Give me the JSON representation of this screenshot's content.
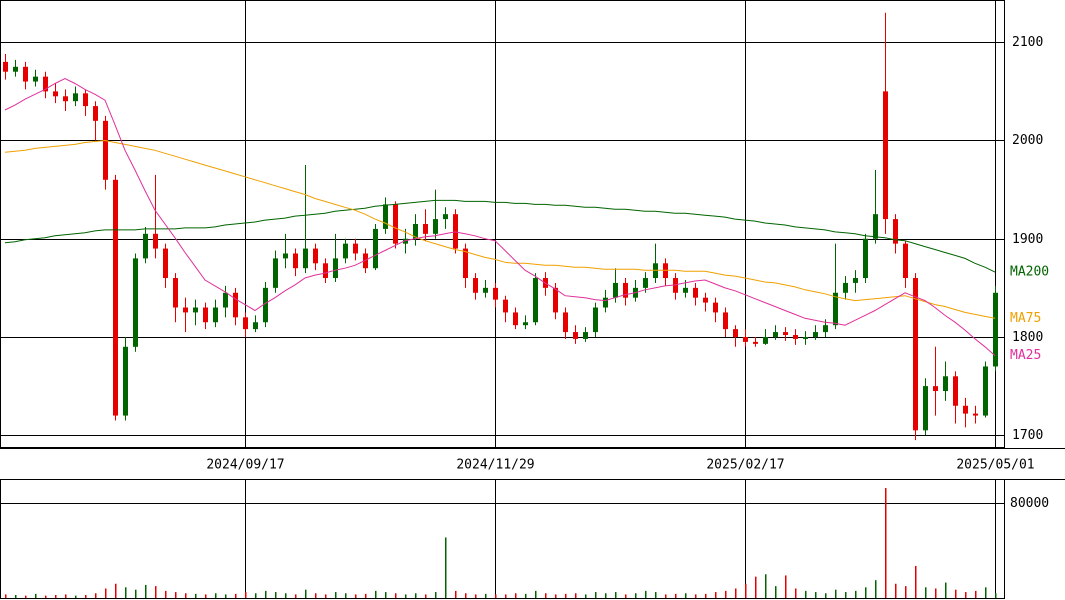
{
  "chart_data": {
    "type": "candlestick",
    "categories": [
      null,
      null,
      null,
      null,
      null,
      null,
      null,
      null,
      null,
      null,
      null,
      null,
      null,
      null,
      null,
      null,
      null,
      null,
      null,
      null,
      null,
      null,
      null,
      null,
      "2024/09/17",
      null,
      null,
      null,
      null,
      null,
      null,
      null,
      null,
      null,
      null,
      null,
      null,
      null,
      null,
      null,
      null,
      null,
      null,
      null,
      null,
      null,
      null,
      null,
      null,
      "2024/11/29",
      null,
      null,
      null,
      null,
      null,
      null,
      null,
      null,
      null,
      null,
      null,
      null,
      null,
      null,
      null,
      null,
      null,
      null,
      null,
      null,
      null,
      null,
      null,
      null,
      "2025/02/17",
      null,
      null,
      null,
      null,
      null,
      null,
      null,
      null,
      null,
      null,
      null,
      null,
      null,
      null,
      null,
      null,
      null,
      null,
      null,
      null,
      null,
      null,
      null,
      null,
      "2025/05/01"
    ],
    "open": [
      2080,
      2070,
      2075,
      2060,
      2065,
      2050,
      2045,
      2040,
      2048,
      2035,
      2020,
      1960,
      1720,
      1790,
      1880,
      1905,
      1890,
      1860,
      1830,
      1825,
      1830,
      1815,
      1830,
      1845,
      1820,
      1808,
      1815,
      1850,
      1880,
      1885,
      1870,
      1890,
      1875,
      1860,
      1880,
      1895,
      1885,
      1870,
      1910,
      1935,
      1895,
      1900,
      1915,
      1905,
      1920,
      1925,
      1890,
      1860,
      1845,
      1850,
      1838,
      1825,
      1812,
      1815,
      1860,
      1850,
      1825,
      1805,
      1798,
      1805,
      1830,
      1840,
      1855,
      1840,
      1850,
      1860,
      1875,
      1860,
      1845,
      1850,
      1840,
      1835,
      1825,
      1808,
      1800,
      1795,
      1793,
      1800,
      1805,
      1802,
      1798,
      1800,
      1805,
      1812,
      1845,
      1855,
      1860,
      1900,
      2050,
      1920,
      1895,
      1860,
      1705,
      1750,
      1745,
      1760,
      1730,
      1722,
      1720,
      1770
    ],
    "high": [
      2088,
      2082,
      2080,
      2072,
      2070,
      2058,
      2052,
      2055,
      2052,
      2040,
      2025,
      1965,
      1800,
      1885,
      1912,
      1965,
      1895,
      1865,
      1840,
      1838,
      1835,
      1838,
      1852,
      1850,
      1825,
      1822,
      1856,
      1888,
      1905,
      1890,
      1975,
      1895,
      1880,
      1905,
      1900,
      1900,
      1890,
      1915,
      1942,
      1938,
      1910,
      1925,
      1930,
      1950,
      1932,
      1930,
      1895,
      1865,
      1858,
      1855,
      1842,
      1830,
      1822,
      1865,
      1866,
      1855,
      1830,
      1812,
      1810,
      1835,
      1848,
      1870,
      1860,
      1858,
      1866,
      1895,
      1880,
      1865,
      1858,
      1855,
      1845,
      1840,
      1830,
      1812,
      1808,
      1800,
      1808,
      1812,
      1810,
      1808,
      1806,
      1812,
      1818,
      1895,
      1862,
      1868,
      1905,
      1970,
      2130,
      1925,
      1898,
      1865,
      1758,
      1790,
      1775,
      1765,
      1738,
      1730,
      1775,
      1852
    ],
    "low": [
      2062,
      2065,
      2052,
      2055,
      2043,
      2038,
      2030,
      2035,
      2025,
      2000,
      1950,
      1715,
      1715,
      1785,
      1875,
      1880,
      1850,
      1815,
      1805,
      1812,
      1808,
      1810,
      1820,
      1812,
      1800,
      1805,
      1810,
      1845,
      1870,
      1862,
      1865,
      1868,
      1855,
      1856,
      1875,
      1878,
      1865,
      1868,
      1905,
      1890,
      1885,
      1893,
      1898,
      1900,
      1910,
      1885,
      1850,
      1838,
      1840,
      1830,
      1815,
      1808,
      1808,
      1812,
      1842,
      1818,
      1798,
      1793,
      1795,
      1800,
      1825,
      1835,
      1832,
      1836,
      1845,
      1855,
      1852,
      1838,
      1840,
      1832,
      1826,
      1815,
      1800,
      1790,
      1790,
      1790,
      1792,
      1797,
      1796,
      1792,
      1792,
      1797,
      1800,
      1808,
      1838,
      1845,
      1855,
      1895,
      1905,
      1885,
      1850,
      1695,
      1700,
      1720,
      1735,
      1712,
      1708,
      1712,
      1718,
      1765
    ],
    "close": [
      2070,
      2075,
      2060,
      2065,
      2050,
      2045,
      2040,
      2048,
      2035,
      2020,
      1960,
      1720,
      1790,
      1880,
      1905,
      1890,
      1860,
      1830,
      1825,
      1830,
      1815,
      1830,
      1845,
      1820,
      1808,
      1815,
      1850,
      1880,
      1885,
      1870,
      1890,
      1875,
      1860,
      1880,
      1895,
      1885,
      1870,
      1910,
      1935,
      1895,
      1900,
      1915,
      1905,
      1920,
      1925,
      1890,
      1860,
      1845,
      1850,
      1838,
      1825,
      1812,
      1815,
      1860,
      1850,
      1825,
      1805,
      1798,
      1805,
      1830,
      1840,
      1855,
      1840,
      1850,
      1860,
      1875,
      1860,
      1845,
      1850,
      1840,
      1835,
      1825,
      1808,
      1800,
      1795,
      1793,
      1800,
      1805,
      1802,
      1798,
      1800,
      1805,
      1812,
      1845,
      1855,
      1860,
      1900,
      1925,
      1920,
      1895,
      1860,
      1705,
      1750,
      1745,
      1760,
      1730,
      1722,
      1720,
      1770,
      1845
    ],
    "up_color": "#006400",
    "down_color": "#e60000",
    "ylim": [
      1687,
      2143
    ],
    "yticks": [
      1700,
      1800,
      1900,
      2000,
      2100
    ],
    "grid": true,
    "series": [
      {
        "name": "MA200",
        "color": "#006400",
        "values": [
          1896,
          1897,
          1899,
          1900,
          1901,
          1903,
          1904,
          1905,
          1906,
          1908,
          1909,
          1909,
          1909,
          1909,
          1910,
          1910,
          1910,
          1910,
          1911,
          1911,
          1911,
          1912,
          1914,
          1915,
          1916,
          1917,
          1919,
          1920,
          1921,
          1923,
          1924,
          1925,
          1926,
          1928,
          1929,
          1930,
          1931,
          1933,
          1934,
          1935,
          1936,
          1937,
          1938,
          1939,
          1939,
          1939,
          1938,
          1938,
          1938,
          1937,
          1937,
          1936,
          1936,
          1935,
          1935,
          1934,
          1934,
          1933,
          1932,
          1932,
          1931,
          1930,
          1930,
          1929,
          1928,
          1928,
          1927,
          1926,
          1926,
          1925,
          1924,
          1923,
          1922,
          1920,
          1919,
          1918,
          1916,
          1915,
          1914,
          1912,
          1911,
          1910,
          1909,
          1907,
          1906,
          1905,
          1903,
          1902,
          1901,
          1899,
          1898,
          1895,
          1892,
          1889,
          1886,
          1883,
          1880,
          1875,
          1871,
          1866
        ]
      },
      {
        "name": "MA75",
        "color": "#f0a000",
        "values": [
          1988,
          1989,
          1990,
          1992,
          1993,
          1994,
          1995,
          1996,
          1998,
          1999,
          2000,
          1998,
          1996,
          1994,
          1992,
          1990,
          1987,
          1984,
          1981,
          1978,
          1975,
          1972,
          1969,
          1966,
          1963,
          1960,
          1957,
          1954,
          1951,
          1948,
          1945,
          1941,
          1938,
          1935,
          1932,
          1929,
          1925,
          1920,
          1916,
          1911,
          1907,
          1902,
          1898,
          1895,
          1892,
          1889,
          1887,
          1884,
          1881,
          1879,
          1876,
          1875,
          1875,
          1874,
          1873,
          1873,
          1872,
          1871,
          1871,
          1870,
          1869,
          1869,
          1869,
          1869,
          1868,
          1868,
          1868,
          1868,
          1867,
          1867,
          1867,
          1865,
          1863,
          1862,
          1860,
          1858,
          1856,
          1855,
          1853,
          1851,
          1848,
          1846,
          1844,
          1841,
          1839,
          1837,
          1838,
          1839,
          1840,
          1841,
          1842,
          1839,
          1836,
          1833,
          1831,
          1828,
          1825,
          1823,
          1821,
          1819
        ]
      },
      {
        "name": "MA25",
        "color": "#e0309a",
        "values": [
          2031,
          2036,
          2042,
          2047,
          2052,
          2058,
          2063,
          2058,
          2052,
          2047,
          2041,
          2016,
          1990,
          1970,
          1949,
          1929,
          1915,
          1901,
          1886,
          1872,
          1858,
          1852,
          1846,
          1839,
          1833,
          1827,
          1834,
          1840,
          1847,
          1853,
          1860,
          1863,
          1865,
          1868,
          1870,
          1873,
          1878,
          1883,
          1888,
          1893,
          1898,
          1900,
          1902,
          1903,
          1905,
          1907,
          1905,
          1903,
          1900,
          1898,
          1888,
          1878,
          1868,
          1862,
          1855,
          1849,
          1842,
          1841,
          1840,
          1838,
          1837,
          1840,
          1843,
          1845,
          1848,
          1850,
          1852,
          1853,
          1855,
          1857,
          1858,
          1854,
          1850,
          1847,
          1843,
          1839,
          1835,
          1831,
          1827,
          1823,
          1819,
          1817,
          1815,
          1814,
          1812,
          1817,
          1822,
          1827,
          1833,
          1839,
          1845,
          1841,
          1837,
          1830,
          1822,
          1815,
          1807,
          1798,
          1790,
          1781
        ]
      }
    ],
    "volume": {
      "values": [
        3000,
        2500,
        2000,
        3500,
        2000,
        2500,
        3000,
        2000,
        2500,
        4000,
        8000,
        12000,
        9000,
        7000,
        11000,
        10000,
        6000,
        5000,
        4000,
        3500,
        3000,
        4000,
        3000,
        3500,
        5000,
        4000,
        6000,
        5000,
        4000,
        3000,
        7000,
        4000,
        3000,
        5000,
        4000,
        3000,
        3500,
        6000,
        5000,
        4000,
        3000,
        4000,
        3000,
        5000,
        51000,
        6000,
        4000,
        3000,
        3500,
        3000,
        3000,
        4000,
        3500,
        6000,
        4000,
        3000,
        3500,
        4000,
        3000,
        5000,
        4000,
        5000,
        3000,
        4000,
        6000,
        5000,
        3000,
        3500,
        4000,
        3000,
        3500,
        5000,
        6000,
        8000,
        12000,
        18000,
        20000,
        10000,
        19000,
        8000,
        6000,
        5000,
        4000,
        7000,
        5000,
        6000,
        9000,
        15000,
        92600,
        12000,
        10000,
        27000,
        9000,
        8000,
        13000,
        7000,
        5000,
        6000,
        9000,
        4000
      ],
      "ylim": [
        0,
        99400
      ],
      "yticks": [
        80000
      ]
    }
  }
}
